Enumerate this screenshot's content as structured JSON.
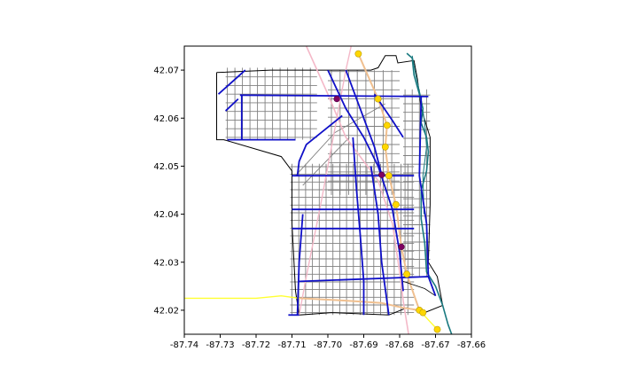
{
  "axes": {
    "x_ticks": [
      "-87.74",
      "-87.73",
      "-87.72",
      "-87.71",
      "-87.70",
      "-87.69",
      "-87.68",
      "-87.67",
      "-87.66"
    ],
    "y_ticks": [
      "42.02",
      "42.03",
      "42.04",
      "42.05",
      "42.06",
      "42.07"
    ],
    "x_range": [
      -87.74,
      -87.66
    ],
    "y_range": [
      42.015,
      42.075
    ]
  },
  "colors": {
    "streets": "#808080",
    "major_roads": "#1010c8",
    "boundary": "#000000",
    "shoreline": "#1a7a80",
    "rail": "#f4b8c8",
    "rail_alt": "#f0c090",
    "stations": "#ffd700",
    "stations_alt": "#800060",
    "freeway": "#ffff33"
  },
  "layers": [
    {
      "id": "streets",
      "desc": "street grid"
    },
    {
      "id": "major_roads",
      "desc": "arterials"
    },
    {
      "id": "rail",
      "desc": "rail lines"
    },
    {
      "id": "stations",
      "desc": "stops"
    }
  ],
  "stations": [
    {
      "lon": -87.6915,
      "lat": 42.0734,
      "kind": "yellow"
    },
    {
      "lon": -87.686,
      "lat": 42.064,
      "kind": "yellow"
    },
    {
      "lon": -87.6835,
      "lat": 42.0585,
      "kind": "yellow"
    },
    {
      "lon": -87.684,
      "lat": 42.054,
      "kind": "yellow"
    },
    {
      "lon": -87.683,
      "lat": 42.048,
      "kind": "yellow"
    },
    {
      "lon": -87.681,
      "lat": 42.042,
      "kind": "yellow"
    },
    {
      "lon": -87.678,
      "lat": 42.0275,
      "kind": "yellow"
    },
    {
      "lon": -87.6745,
      "lat": 42.02,
      "kind": "yellow"
    },
    {
      "lon": -87.6735,
      "lat": 42.0195,
      "kind": "yellow"
    },
    {
      "lon": -87.6695,
      "lat": 42.016,
      "kind": "yellow"
    },
    {
      "lon": -87.6975,
      "lat": 42.064,
      "kind": "purple"
    },
    {
      "lon": -87.685,
      "lat": 42.0482,
      "kind": "purple"
    },
    {
      "lon": -87.6795,
      "lat": 42.0332,
      "kind": "purple"
    }
  ]
}
